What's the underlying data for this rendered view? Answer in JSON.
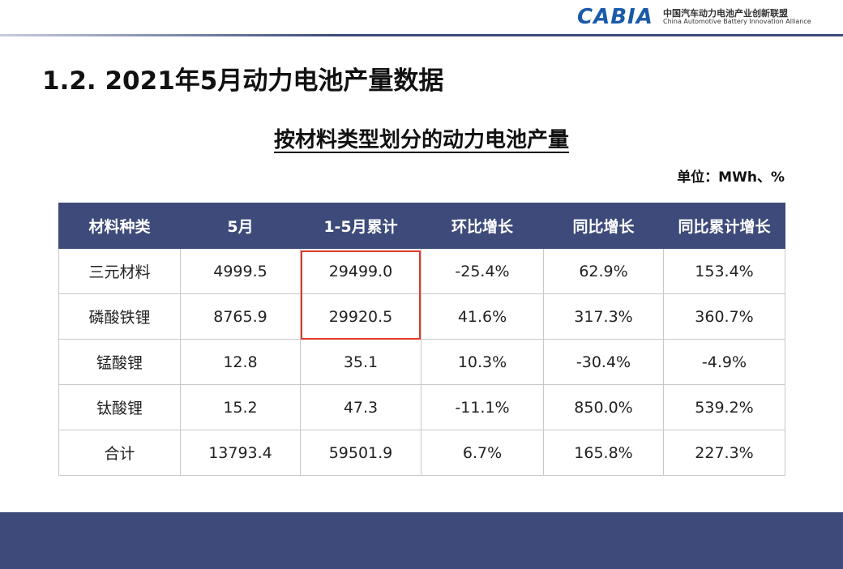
{
  "header": {
    "logo": "CABIA",
    "org_cn": "中国汽车动力电池产业创新联盟",
    "org_en": "China Automotive Battery Innovation Alliance"
  },
  "title": "1.2. 2021年5月动力电池产量数据",
  "subtitle": "按材料类型划分的动力电池产量",
  "unit": "单位：MWh、%",
  "table": {
    "header": [
      "材料种类",
      "5月",
      "1-5月累计",
      "环比增长",
      "同比增长",
      "同比累计增长"
    ],
    "rows": [
      [
        "三元材料",
        "4999.5",
        "29499.0",
        "-25.4%",
        "62.9%",
        "153.4%"
      ],
      [
        "磷酸铁锂",
        "8765.9",
        "29920.5",
        "41.6%",
        "317.3%",
        "360.7%"
      ],
      [
        "锰酸锂",
        "12.8",
        "35.1",
        "10.3%",
        "-30.4%",
        "-4.9%"
      ],
      [
        "钛酸锂",
        "15.2",
        "47.3",
        "-11.1%",
        "850.0%",
        "539.2%"
      ],
      [
        "合计",
        "13793.4",
        "59501.9",
        "6.7%",
        "165.8%",
        "227.3%"
      ]
    ]
  }
}
